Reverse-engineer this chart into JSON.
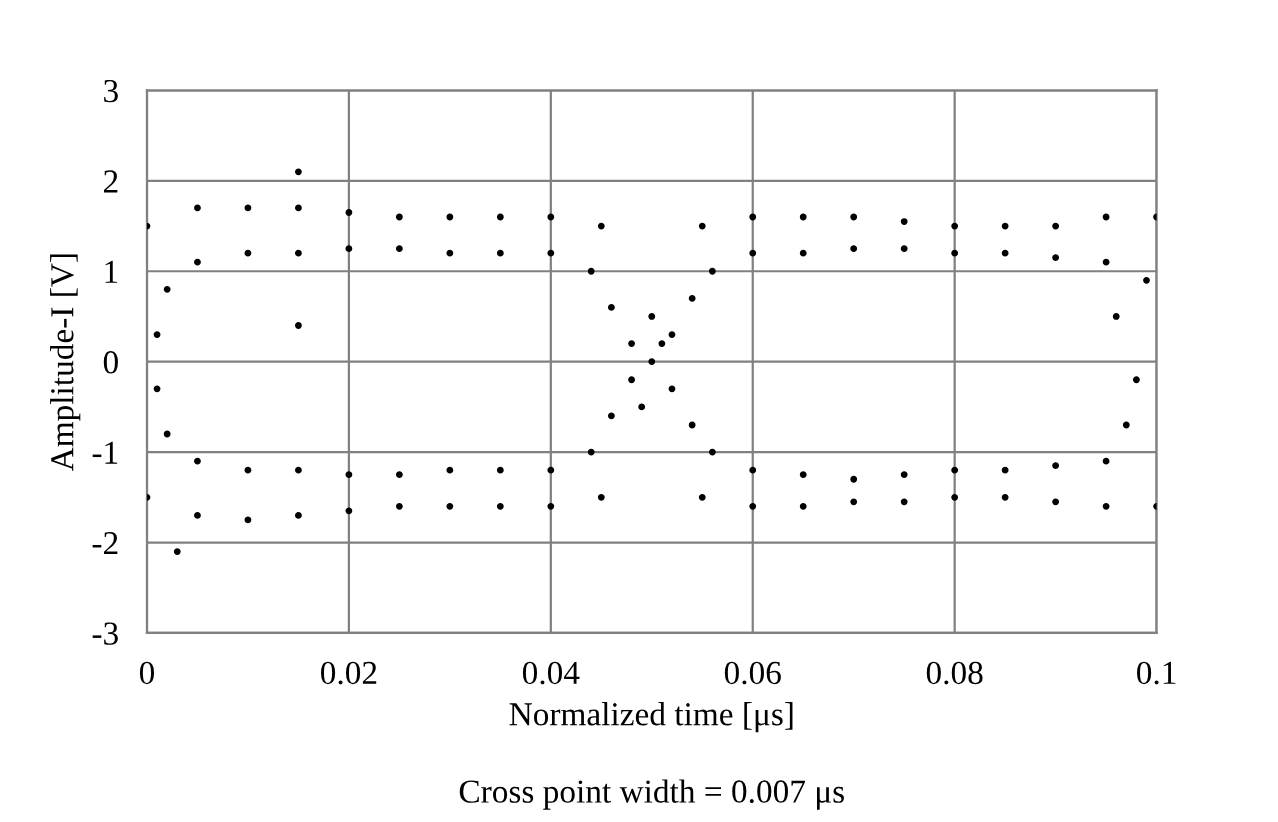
{
  "chart_data": {
    "type": "scatter",
    "xlabel": "Normalized time [μs]",
    "ylabel": "Amplitude-I [V]",
    "annotations": [
      "Cross point width = 0.007 μs"
    ],
    "xlim": [
      0,
      0.1
    ],
    "ylim": [
      -3,
      3
    ],
    "xticks": [
      0,
      0.02,
      0.04,
      0.06,
      0.08,
      0.1
    ],
    "yticks": [
      -3,
      -2,
      -1,
      0,
      1,
      2,
      3
    ],
    "grid": true,
    "series": [
      {
        "color": "#000000",
        "x": [
          0.005,
          0.01,
          0.015,
          0.02,
          0.025,
          0.03,
          0.035,
          0.04,
          0.045,
          0.055,
          0.06,
          0.065,
          0.07,
          0.075,
          0.08,
          0.085,
          0.09,
          0.095,
          0.1,
          0.005,
          0.01,
          0.015,
          0.02,
          0.025,
          0.03,
          0.035,
          0.04,
          0.06,
          0.065,
          0.07,
          0.075,
          0.08,
          0.085,
          0.09,
          0.095,
          0.005,
          0.01,
          0.015,
          0.02,
          0.025,
          0.03,
          0.035,
          0.04,
          0.045,
          0.055,
          0.06,
          0.065,
          0.07,
          0.075,
          0.08,
          0.085,
          0.09,
          0.095,
          0.1,
          0.005,
          0.01,
          0.015,
          0.02,
          0.025,
          0.03,
          0.035,
          0.04,
          0.06,
          0.065,
          0.07,
          0.075,
          0.08,
          0.085,
          0.09,
          0.095,
          0.044,
          0.046,
          0.048,
          0.05,
          0.052,
          0.054,
          0.056,
          0.044,
          0.046,
          0.048,
          0.052,
          0.054,
          0.056,
          0.05,
          0.049,
          0.051,
          0.002,
          0.001,
          0.001,
          0.002,
          0,
          0,
          0.096,
          0.098,
          0.097,
          0.099,
          0.015,
          0.003,
          0.015
        ],
        "values": [
          1.7,
          1.7,
          1.7,
          1.65,
          1.6,
          1.6,
          1.6,
          1.6,
          1.5,
          1.5,
          1.6,
          1.6,
          1.6,
          1.55,
          1.5,
          1.5,
          1.5,
          1.6,
          1.6,
          1.1,
          1.2,
          1.2,
          1.25,
          1.25,
          1.2,
          1.2,
          1.2,
          1.2,
          1.2,
          1.25,
          1.25,
          1.2,
          1.2,
          1.15,
          1.1,
          -1.7,
          -1.75,
          -1.7,
          -1.65,
          -1.6,
          -1.6,
          -1.6,
          -1.6,
          -1.5,
          -1.5,
          -1.6,
          -1.6,
          -1.55,
          -1.55,
          -1.5,
          -1.5,
          -1.55,
          -1.6,
          -1.6,
          -1.1,
          -1.2,
          -1.2,
          -1.25,
          -1.25,
          -1.2,
          -1.2,
          -1.2,
          -1.2,
          -1.25,
          -1.3,
          -1.25,
          -1.2,
          -1.2,
          -1.15,
          -1.1,
          1.0,
          0.6,
          0.2,
          0,
          -0.3,
          -0.7,
          -1.0,
          -1.0,
          -0.6,
          -0.2,
          0.3,
          0.7,
          1.0,
          0.5,
          -0.5,
          0.2,
          0.8,
          0.3,
          -0.3,
          -0.8,
          1.5,
          -1.5,
          0.5,
          -0.2,
          -0.7,
          0.9,
          2.1,
          -2.1,
          0.4
        ]
      }
    ]
  }
}
